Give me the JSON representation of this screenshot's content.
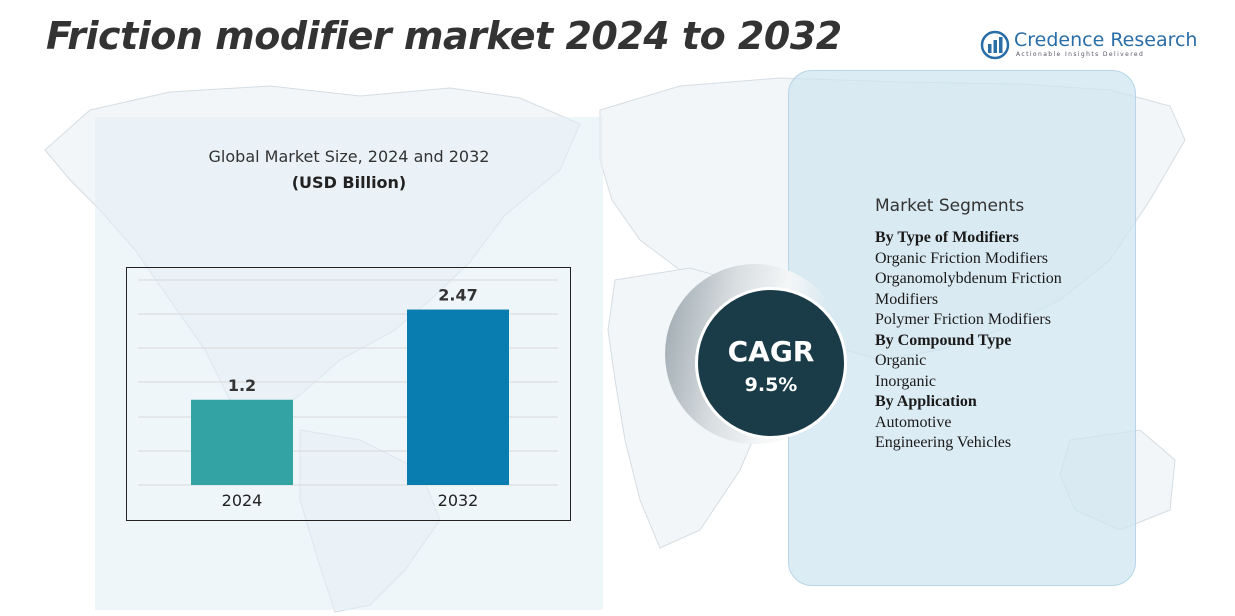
{
  "header": {
    "title": "Friction modifier market 2024 to 2032"
  },
  "logo": {
    "name": "Credence Research",
    "tagline": "Actionable Insights Delivered"
  },
  "chart_data": {
    "type": "bar",
    "title": "Global Market Size, 2024 and 2032",
    "subtitle": "(USD Billion)",
    "categories": [
      "2024",
      "2032"
    ],
    "values": [
      1.2,
      2.47
    ],
    "data_labels": [
      "1.2",
      "2.47"
    ],
    "colors": [
      "#33a3a3",
      "#0a7db0"
    ],
    "ylim": [
      0,
      2.9
    ],
    "grid": true,
    "legend": "none"
  },
  "cagr": {
    "label": "CAGR",
    "value": "9.5%"
  },
  "segments": {
    "heading": "Market Segments",
    "lines": [
      {
        "text": "By Type of Modifiers",
        "bold": true
      },
      {
        "text": "Organic Friction Modifiers",
        "bold": false
      },
      {
        "text": "Organomolybdenum Friction",
        "bold": false
      },
      {
        "text": "Modifiers",
        "bold": false
      },
      {
        "text": "Polymer Friction Modifiers",
        "bold": false
      },
      {
        "text": "By Compound Type",
        "bold": true
      },
      {
        "text": "Organic",
        "bold": false
      },
      {
        "text": "Inorganic",
        "bold": false
      },
      {
        "text": "By Application",
        "bold": true
      },
      {
        "text": "Automotive",
        "bold": false
      },
      {
        "text": "Engineering Vehicles",
        "bold": false
      }
    ]
  }
}
